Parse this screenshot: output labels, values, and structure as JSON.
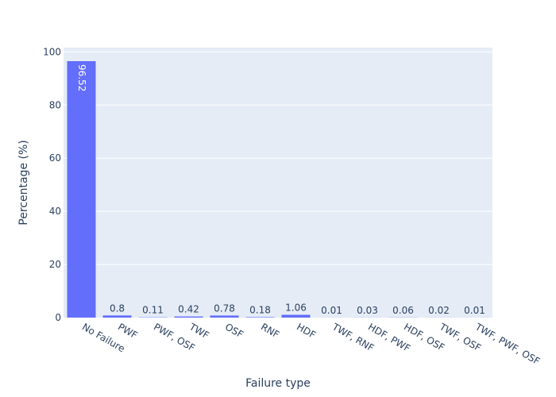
{
  "chart_data": {
    "type": "bar",
    "categories": [
      "No Failure",
      "PWF",
      "PWF, OSF",
      "TWF",
      "OSF",
      "RNF",
      "HDF",
      "TWF, RNF",
      "HDF, PWF",
      "HDF, OSF",
      "TWF, OSF",
      "TWF, PWF, OSF"
    ],
    "values": [
      96.52,
      0.8,
      0.11,
      0.42,
      0.78,
      0.18,
      1.06,
      0.01,
      0.03,
      0.06,
      0.02,
      0.01
    ],
    "value_labels": [
      "96.52",
      "0.8",
      "0.11",
      "0.42",
      "0.78",
      "0.18",
      "1.06",
      "0.01",
      "0.03",
      "0.06",
      "0.02",
      "0.01"
    ],
    "title": "",
    "xlabel": "Failure type",
    "ylabel": "Percentage (%)",
    "ylim": [
      0,
      101.6
    ],
    "yticks": [
      0,
      20,
      40,
      60,
      80,
      100
    ],
    "ytick_labels": [
      "0",
      "20",
      "40",
      "60",
      "80",
      "100"
    ],
    "grid": true,
    "bar_color": "#636efa",
    "plot_bg": "#e5ecf6",
    "text_color": "#2a3f5f"
  }
}
